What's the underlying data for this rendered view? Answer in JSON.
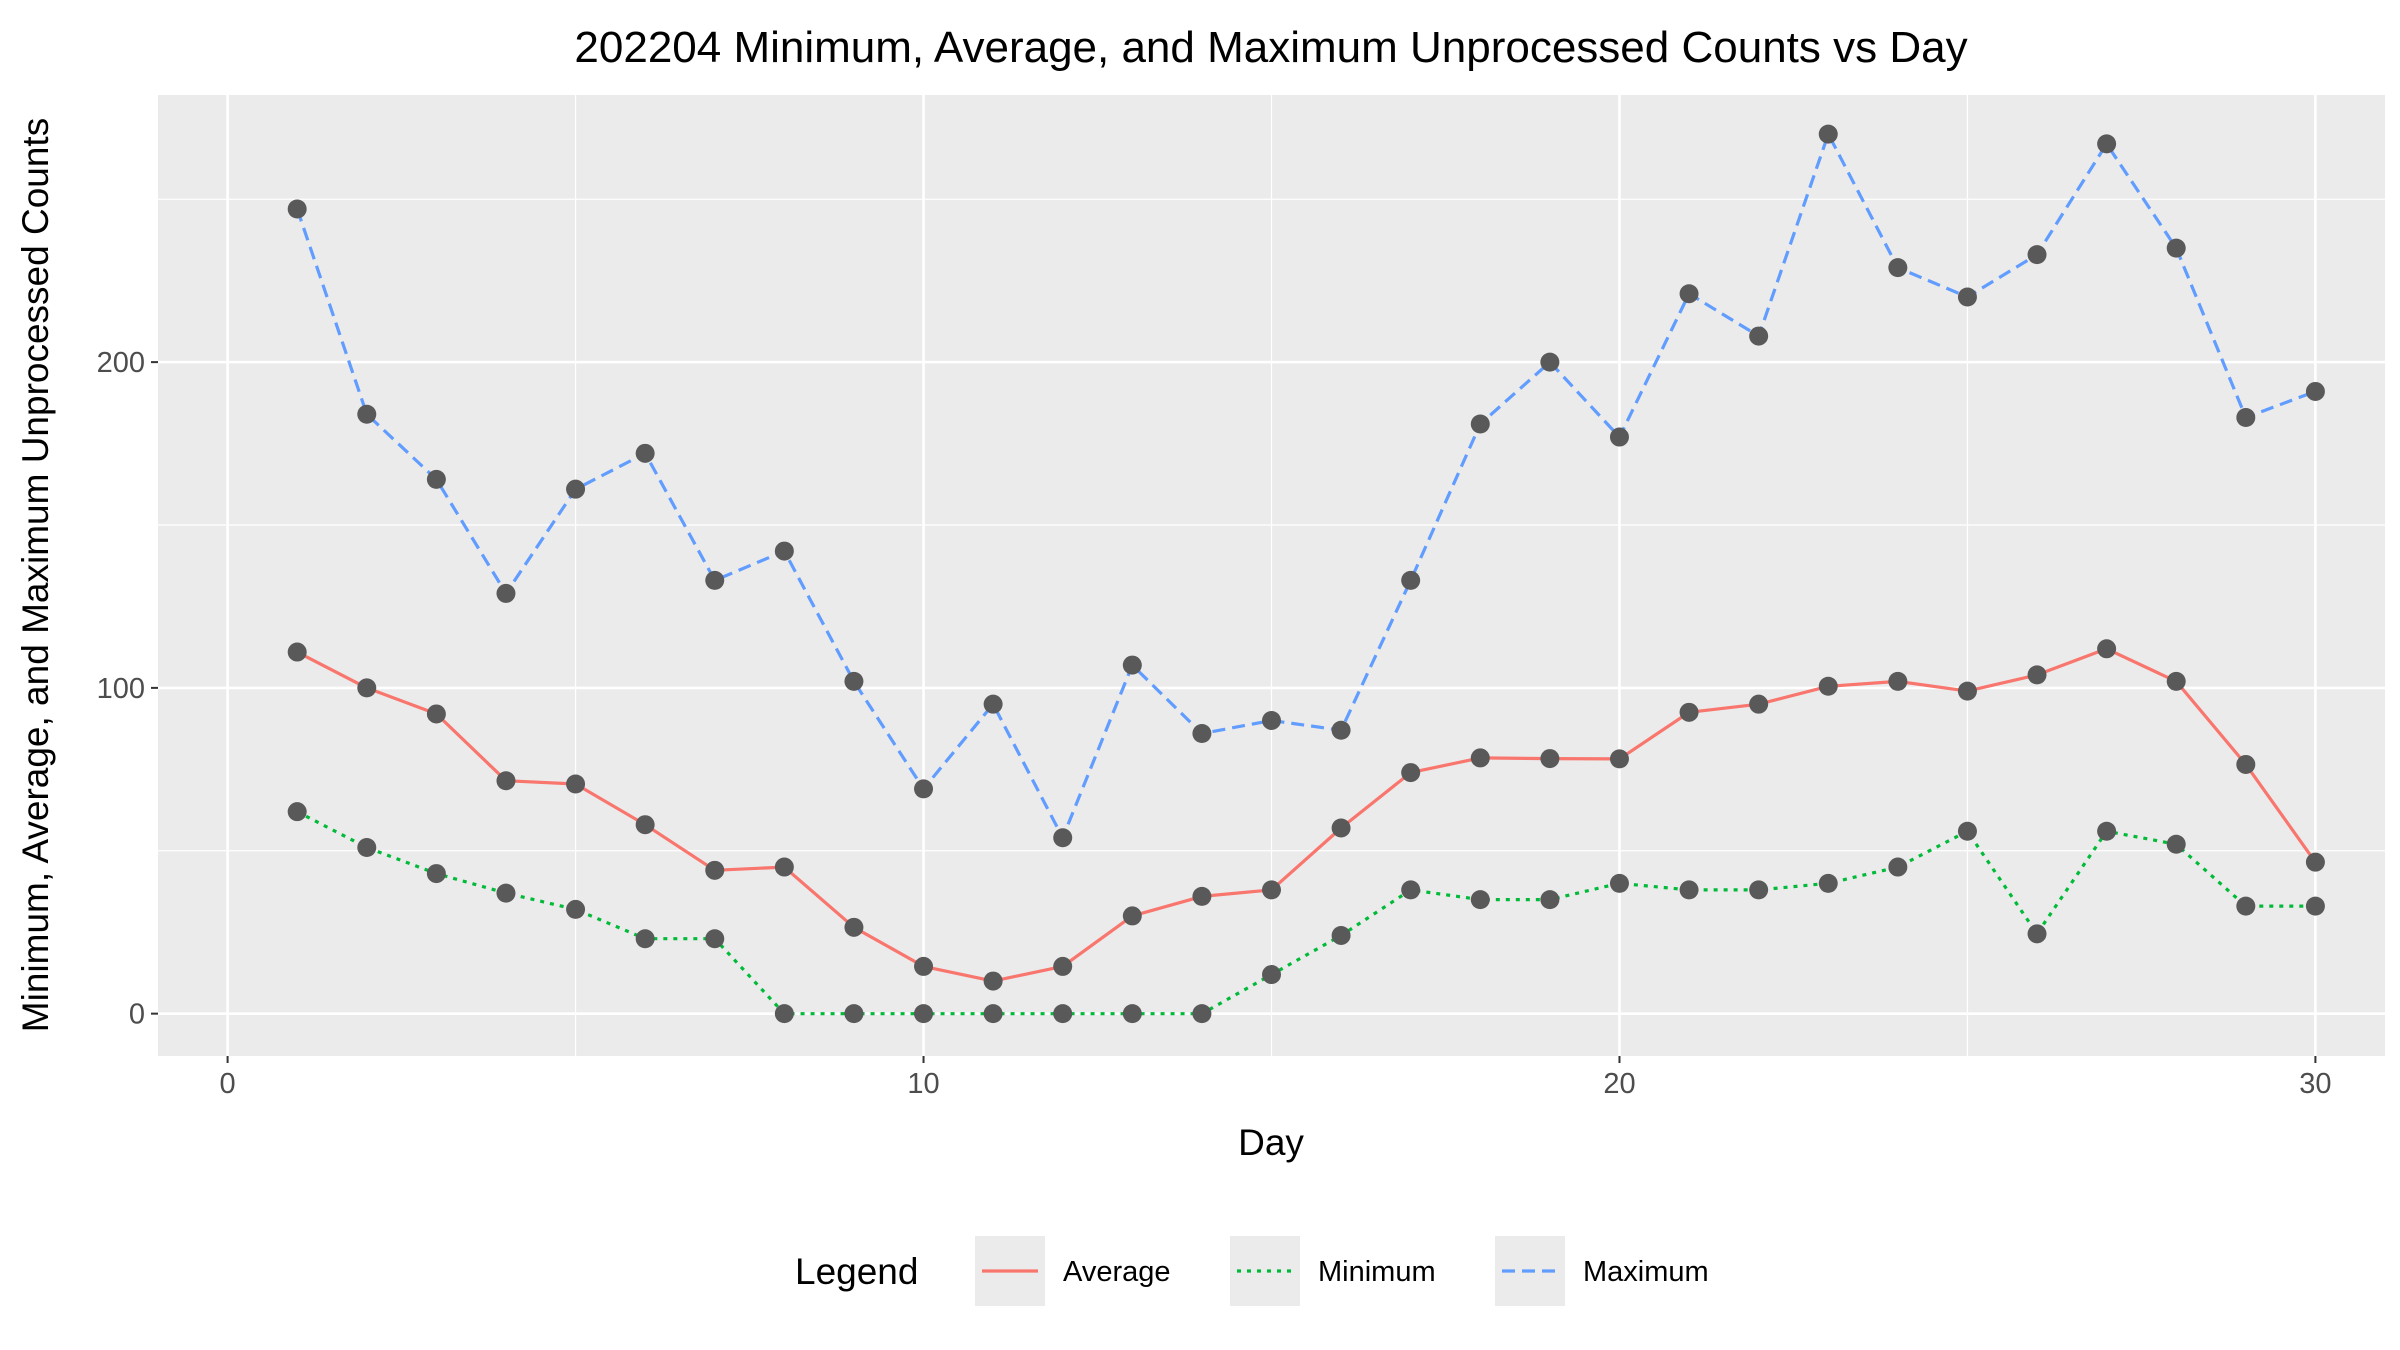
{
  "chart_data": {
    "type": "line",
    "title": "202204 Minimum, Average, and Maximum Unprocessed Counts vs Day",
    "xlabel": "Day",
    "ylabel": "Minimum, Average, and Maximum Unprocessed Counts",
    "xlim": [
      -1,
      31
    ],
    "ylim": [
      -13,
      282
    ],
    "x_ticks": [
      0,
      10,
      20,
      30
    ],
    "y_ticks": [
      0,
      100,
      200
    ],
    "x_tick_labels": [
      "0",
      "10",
      "20",
      "30"
    ],
    "y_tick_labels": [
      "0",
      "100",
      "200"
    ],
    "grid": true,
    "legend_placement": "bottom",
    "legend_title": "Legend",
    "x": [
      1,
      2,
      3,
      4,
      5,
      6,
      7,
      8,
      9,
      10,
      11,
      12,
      13,
      14,
      15,
      16,
      17,
      18,
      19,
      20,
      21,
      22,
      23,
      24,
      25,
      26,
      27,
      28,
      29,
      30
    ],
    "series": [
      {
        "name": "Average",
        "color": "#F8766D",
        "dash": "solid",
        "values": [
          111,
          100,
          92,
          71.5,
          70.5,
          58,
          44,
          45,
          26.5,
          14.5,
          10,
          14.5,
          30,
          36,
          38,
          57,
          74,
          78.5,
          78.3,
          78.2,
          92.5,
          95,
          100.5,
          102,
          99,
          104,
          112,
          102,
          76.5,
          46.5
        ]
      },
      {
        "name": "Minimum",
        "color": "#00BA38",
        "dash": "dotted",
        "values": [
          62,
          51,
          43,
          37,
          32,
          23,
          23,
          0,
          0,
          0,
          0,
          0,
          0,
          0,
          12,
          24,
          38,
          35,
          35,
          40,
          38,
          38,
          40,
          45,
          56,
          24.5,
          56,
          52,
          33,
          33
        ]
      },
      {
        "name": "Maximum",
        "color": "#619CFF",
        "dash": "dashed",
        "values": [
          247,
          184,
          164,
          129,
          161,
          172,
          133,
          142,
          102,
          69,
          95,
          54,
          107,
          86,
          90,
          87,
          133,
          181,
          200,
          177,
          221,
          208,
          270,
          229,
          220,
          233,
          267,
          235,
          183,
          191
        ]
      }
    ]
  }
}
